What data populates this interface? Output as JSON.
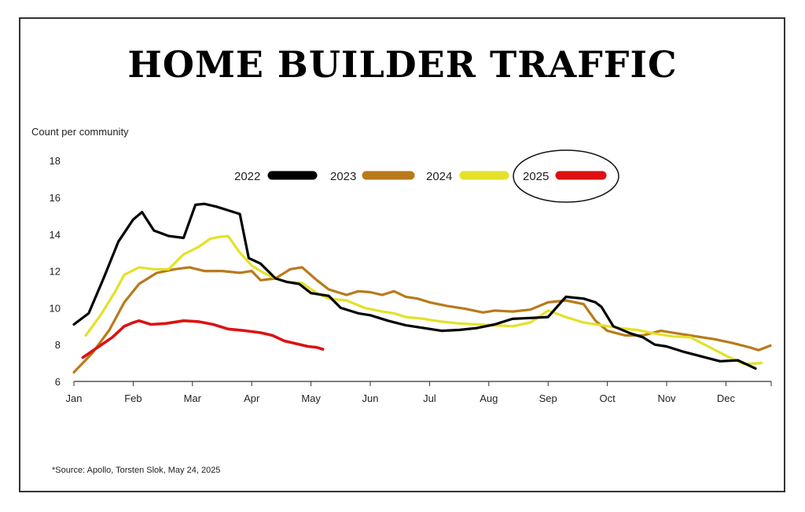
{
  "title": "HOME BUILDER TRAFFIC",
  "source": "*Source: Apollo, Torsten Slok, May 24, 2025",
  "chart_data": {
    "type": "line",
    "title": "HOME BUILDER TRAFFIC",
    "ylabel": "Count per community",
    "xlabel": "",
    "ylim": [
      6,
      18
    ],
    "yticks": [
      6,
      8,
      10,
      12,
      14,
      16,
      18
    ],
    "xlim": [
      0,
      11.75
    ],
    "xticks": [
      "Jan",
      "Feb",
      "Mar",
      "Apr",
      "May",
      "Jun",
      "Jul",
      "Aug",
      "Sep",
      "Oct",
      "Nov",
      "Dec"
    ],
    "legend_position": "top-center",
    "highlighted_series": "2025",
    "series": [
      {
        "name": "2022",
        "color": "#000000",
        "x": [
          0,
          0.25,
          0.5,
          0.75,
          1.0,
          1.15,
          1.35,
          1.6,
          1.85,
          2.05,
          2.2,
          2.4,
          2.6,
          2.8,
          2.95,
          3.15,
          3.4,
          3.6,
          3.8,
          4.0,
          4.3,
          4.5,
          4.8,
          5.0,
          5.3,
          5.6,
          5.9,
          6.2,
          6.5,
          6.8,
          7.1,
          7.4,
          7.7,
          8.0,
          8.3,
          8.6,
          8.8,
          8.9,
          9.1,
          9.4,
          9.6,
          9.8,
          10.0,
          10.3,
          10.6,
          10.9,
          11.2,
          11.4,
          11.5
        ],
        "values": [
          9.1,
          9.7,
          11.6,
          13.6,
          14.8,
          15.2,
          14.2,
          13.9,
          13.8,
          15.6,
          15.65,
          15.5,
          15.3,
          15.1,
          12.7,
          12.4,
          11.6,
          11.4,
          11.3,
          10.8,
          10.65,
          10.0,
          9.7,
          9.6,
          9.3,
          9.05,
          8.9,
          8.75,
          8.8,
          8.9,
          9.1,
          9.4,
          9.45,
          9.5,
          10.6,
          10.5,
          10.3,
          10.05,
          9.0,
          8.6,
          8.4,
          8.0,
          7.9,
          7.6,
          7.35,
          7.1,
          7.15,
          6.85,
          6.7
        ]
      },
      {
        "name": "2023",
        "color": "#B87A1A",
        "x": [
          0,
          0.3,
          0.6,
          0.85,
          1.1,
          1.4,
          1.7,
          1.95,
          2.2,
          2.5,
          2.8,
          3.0,
          3.15,
          3.4,
          3.65,
          3.85,
          4.1,
          4.3,
          4.6,
          4.8,
          5.0,
          5.2,
          5.4,
          5.6,
          5.8,
          6.0,
          6.3,
          6.6,
          6.9,
          7.1,
          7.4,
          7.7,
          8.0,
          8.3,
          8.6,
          8.8,
          9.0,
          9.3,
          9.6,
          9.9,
          10.2,
          10.5,
          10.8,
          11.1,
          11.4,
          11.55,
          11.75
        ],
        "values": [
          6.5,
          7.5,
          8.8,
          10.3,
          11.3,
          11.9,
          12.1,
          12.2,
          12.0,
          12.0,
          11.9,
          12.0,
          11.5,
          11.6,
          12.1,
          12.2,
          11.5,
          11.0,
          10.7,
          10.9,
          10.85,
          10.7,
          10.9,
          10.6,
          10.5,
          10.3,
          10.1,
          9.95,
          9.75,
          9.85,
          9.8,
          9.9,
          10.3,
          10.4,
          10.2,
          9.3,
          8.75,
          8.5,
          8.5,
          8.75,
          8.6,
          8.45,
          8.3,
          8.1,
          7.85,
          7.7,
          7.95
        ]
      },
      {
        "name": "2024",
        "color": "#E3E129",
        "x": [
          0.2,
          0.45,
          0.7,
          0.85,
          1.1,
          1.35,
          1.6,
          1.85,
          2.1,
          2.3,
          2.45,
          2.6,
          2.8,
          3.0,
          3.2,
          3.4,
          3.6,
          3.85,
          4.1,
          4.3,
          4.6,
          4.9,
          5.2,
          5.4,
          5.6,
          5.9,
          6.2,
          6.5,
          6.8,
          7.1,
          7.4,
          7.7,
          8.0,
          8.3,
          8.6,
          8.9,
          9.2,
          9.5,
          9.8,
          10.1,
          10.4,
          10.7,
          11.0,
          11.3,
          11.6
        ],
        "values": [
          8.5,
          9.6,
          10.9,
          11.8,
          12.2,
          12.1,
          12.1,
          12.9,
          13.3,
          13.75,
          13.85,
          13.9,
          13.0,
          12.3,
          11.9,
          11.6,
          11.4,
          11.35,
          10.8,
          10.5,
          10.4,
          10.0,
          9.8,
          9.7,
          9.5,
          9.4,
          9.25,
          9.15,
          9.1,
          9.05,
          9.0,
          9.2,
          9.85,
          9.5,
          9.2,
          9.05,
          8.9,
          8.8,
          8.6,
          8.45,
          8.4,
          7.9,
          7.4,
          6.95,
          7.0
        ]
      },
      {
        "name": "2025",
        "color": "#DD1111",
        "x": [
          0.15,
          0.4,
          0.65,
          0.85,
          1.0,
          1.1,
          1.3,
          1.55,
          1.85,
          2.1,
          2.35,
          2.6,
          2.9,
          3.15,
          3.35,
          3.55,
          3.75,
          3.95,
          4.1,
          4.2
        ],
        "values": [
          7.3,
          7.85,
          8.4,
          9.0,
          9.2,
          9.3,
          9.1,
          9.15,
          9.3,
          9.25,
          9.1,
          8.85,
          8.75,
          8.65,
          8.5,
          8.2,
          8.05,
          7.9,
          7.85,
          7.75
        ]
      }
    ]
  }
}
